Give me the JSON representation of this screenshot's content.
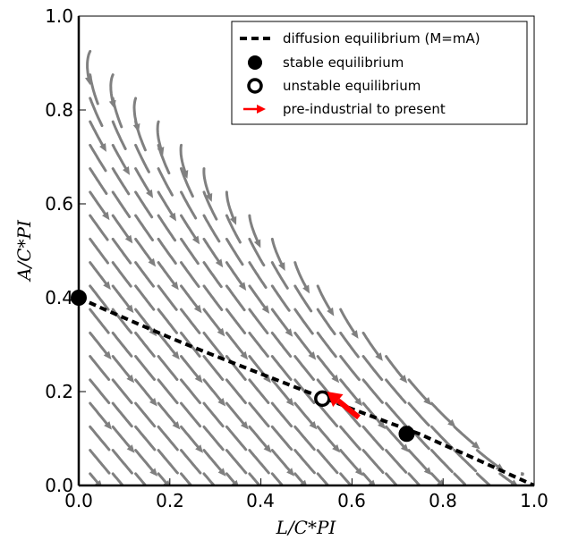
{
  "chart_data": {
    "type": "scatter",
    "title": "",
    "xlabel": "L/C*PI",
    "ylabel": "A/C*PI",
    "xlim": [
      0.0,
      1.0
    ],
    "ylim": [
      0.0,
      1.0
    ],
    "xticks": [
      "0.0",
      "0.2",
      "0.4",
      "0.6",
      "0.8",
      "1.0"
    ],
    "yticks": [
      "0.0",
      "0.2",
      "0.4",
      "0.6",
      "0.8",
      "1.0"
    ],
    "grid": false,
    "legend_position": "top-right",
    "legend": [
      {
        "key": "diffusion",
        "label": "diffusion equilibrium (M=mA)"
      },
      {
        "key": "stable",
        "label": "stable equilibrium"
      },
      {
        "key": "unstable",
        "label": "unstable equilibrium"
      },
      {
        "key": "arrow",
        "label": "pre-industrial to present"
      }
    ],
    "diffusion_curve": {
      "x": [
        0.0,
        0.05,
        0.1,
        0.15,
        0.2,
        0.25,
        0.3,
        0.35,
        0.4,
        0.45,
        0.5,
        0.55,
        0.6,
        0.65,
        0.7,
        0.75,
        0.8,
        0.85,
        0.9,
        0.95,
        1.0
      ],
      "y": [
        0.4,
        0.378,
        0.357,
        0.336,
        0.315,
        0.295,
        0.276,
        0.257,
        0.238,
        0.219,
        0.2,
        0.182,
        0.163,
        0.145,
        0.127,
        0.109,
        0.087,
        0.066,
        0.044,
        0.022,
        0.0
      ]
    },
    "stable_equilibria": [
      {
        "x": 0.0,
        "y": 0.4
      },
      {
        "x": 0.72,
        "y": 0.11
      }
    ],
    "unstable_equilibria": [
      {
        "x": 0.535,
        "y": 0.185
      }
    ],
    "preindustrial_arrow": {
      "from": [
        0.615,
        0.145
      ],
      "to": [
        0.545,
        0.2
      ]
    },
    "boundary_line": {
      "from": [
        0.0,
        0.95
      ],
      "to": [
        1.0,
        0.0
      ]
    },
    "colors": {
      "streamlines": "#808080",
      "diffusion": "#000000",
      "stable": "#000000",
      "unstable": "#000000",
      "arrow": "#ff0000"
    }
  }
}
